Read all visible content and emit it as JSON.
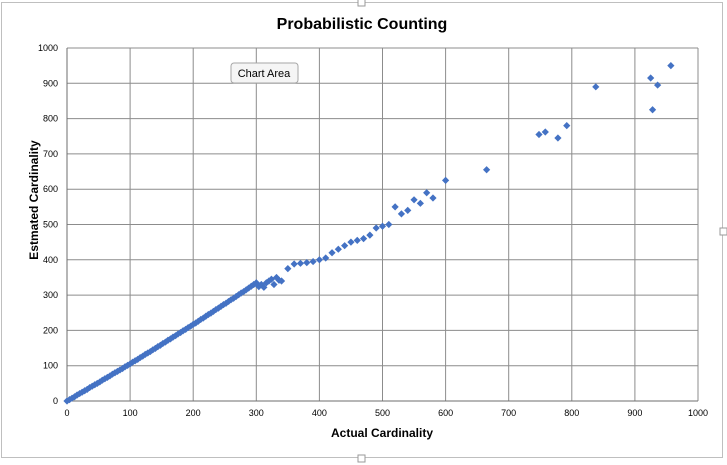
{
  "tooltip": {
    "label": "Chart Area"
  },
  "colors": {
    "marker": "#4472C4",
    "grid": "#8C8C8C",
    "frame": "#BFBFBF"
  },
  "chart_data": {
    "type": "scatter",
    "title": "Probabilistic Counting",
    "xlabel": "Actual Cardinality",
    "ylabel": "Estmated Cardinality",
    "xlim": [
      0,
      1000
    ],
    "ylim": [
      0,
      1000
    ],
    "xticks": [
      0,
      100,
      200,
      300,
      400,
      500,
      600,
      700,
      800,
      900,
      1000
    ],
    "yticks": [
      0,
      100,
      200,
      300,
      400,
      500,
      600,
      700,
      800,
      900,
      1000
    ],
    "grid": true,
    "legend": "none",
    "marker": "diamond",
    "x": [
      0,
      4,
      8,
      12,
      16,
      20,
      24,
      28,
      32,
      36,
      40,
      44,
      48,
      52,
      56,
      60,
      64,
      68,
      72,
      76,
      80,
      84,
      88,
      92,
      96,
      100,
      104,
      108,
      112,
      116,
      120,
      124,
      128,
      132,
      136,
      140,
      144,
      148,
      152,
      156,
      160,
      164,
      168,
      172,
      176,
      180,
      184,
      188,
      192,
      196,
      200,
      204,
      208,
      212,
      216,
      220,
      224,
      228,
      232,
      236,
      240,
      244,
      248,
      252,
      256,
      260,
      264,
      268,
      272,
      276,
      280,
      284,
      288,
      292,
      296,
      300,
      304,
      308,
      312,
      316,
      320,
      324,
      328,
      332,
      336,
      340,
      350,
      360,
      370,
      380,
      390,
      400,
      410,
      420,
      430,
      440,
      450,
      460,
      470,
      480,
      490,
      500,
      510,
      520,
      530,
      540,
      550,
      560,
      570,
      580,
      600,
      665,
      748,
      758,
      778,
      792,
      838,
      925,
      928,
      936,
      957
    ],
    "y": [
      0,
      4,
      8,
      12,
      17,
      21,
      25,
      29,
      33,
      38,
      42,
      46,
      50,
      54,
      59,
      63,
      67,
      71,
      76,
      80,
      84,
      88,
      92,
      97,
      101,
      105,
      110,
      114,
      118,
      123,
      127,
      132,
      136,
      140,
      145,
      149,
      154,
      158,
      163,
      167,
      172,
      176,
      181,
      185,
      190,
      194,
      199,
      203,
      208,
      212,
      217,
      221,
      226,
      231,
      235,
      240,
      245,
      249,
      254,
      259,
      263,
      268,
      273,
      277,
      282,
      287,
      291,
      296,
      301,
      306,
      310,
      315,
      320,
      325,
      330,
      335,
      324,
      330,
      322,
      335,
      340,
      345,
      330,
      350,
      342,
      340,
      375,
      388,
      390,
      392,
      395,
      400,
      405,
      420,
      430,
      440,
      450,
      455,
      460,
      470,
      490,
      495,
      500,
      550,
      530,
      540,
      570,
      560,
      590,
      575,
      625,
      655,
      755,
      762,
      745,
      780,
      890,
      915,
      825,
      895,
      950
    ]
  }
}
